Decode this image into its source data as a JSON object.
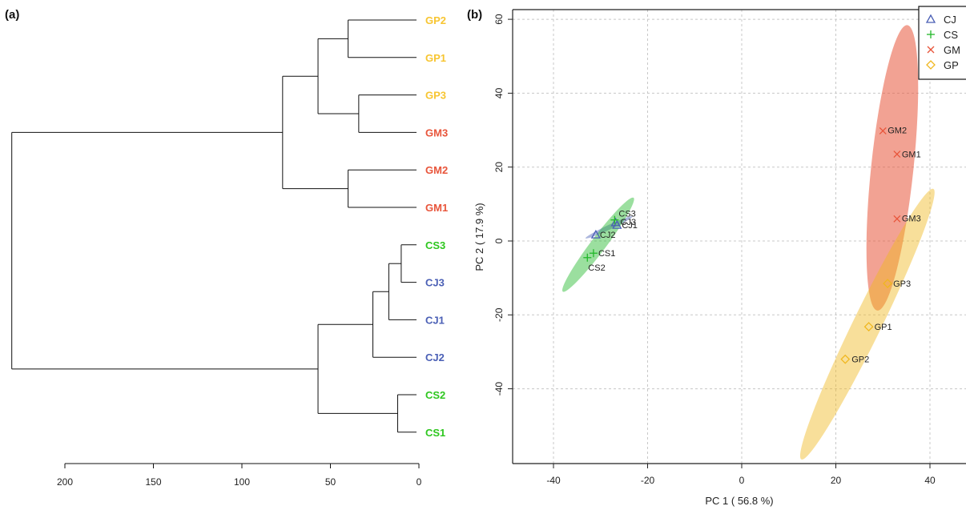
{
  "colors": {
    "CJ": "#4a5fb5",
    "CS": "#22b82a",
    "GM": "#e8553b",
    "GP": "#f0b71f",
    "label_GP": "#f7c531",
    "label_GM": "#e8553b",
    "label_CS": "#2ec71f",
    "label_CJ": "#4a5fb5",
    "axis": "#222222",
    "grid": "#c8c8c8"
  },
  "panel_a": {
    "label": "(a)",
    "chart_data": {
      "type": "dendrogram",
      "leaves": [
        {
          "name": "GP2",
          "group": "GP"
        },
        {
          "name": "GP1",
          "group": "GP"
        },
        {
          "name": "GP3",
          "group": "GP"
        },
        {
          "name": "GM3",
          "group": "GM"
        },
        {
          "name": "GM2",
          "group": "GM"
        },
        {
          "name": "GM1",
          "group": "GM"
        },
        {
          "name": "CS3",
          "group": "CS"
        },
        {
          "name": "CJ3",
          "group": "CJ"
        },
        {
          "name": "CJ1",
          "group": "CJ"
        },
        {
          "name": "CJ2",
          "group": "CJ"
        },
        {
          "name": "CS2",
          "group": "CS"
        },
        {
          "name": "CS1",
          "group": "CS"
        }
      ],
      "merges": [
        {
          "id": "m1",
          "children": [
            "GP2",
            "GP1"
          ],
          "height": 40
        },
        {
          "id": "m2",
          "children": [
            "GP3",
            "GM3"
          ],
          "height": 34
        },
        {
          "id": "m3",
          "children": [
            "m1",
            "m2"
          ],
          "height": 57
        },
        {
          "id": "m4",
          "children": [
            "GM2",
            "GM1"
          ],
          "height": 40
        },
        {
          "id": "m5",
          "children": [
            "m3",
            "m4"
          ],
          "height": 77
        },
        {
          "id": "m6",
          "children": [
            "CS3",
            "CJ3"
          ],
          "height": 10
        },
        {
          "id": "m7",
          "children": [
            "m6",
            "CJ1"
          ],
          "height": 17
        },
        {
          "id": "m8",
          "children": [
            "m7",
            "CJ2"
          ],
          "height": 26
        },
        {
          "id": "m9",
          "children": [
            "CS2",
            "CS1"
          ],
          "height": 12
        },
        {
          "id": "m10",
          "children": [
            "m8",
            "m9"
          ],
          "height": 57
        },
        {
          "id": "m11",
          "children": [
            "m5",
            "m10"
          ],
          "height": 230
        }
      ],
      "xlim": [
        200,
        0
      ],
      "x_ticks": [
        200,
        150,
        100,
        50,
        0
      ],
      "x_tick_labels": [
        "200",
        "150",
        "100",
        "50",
        "0"
      ]
    }
  },
  "panel_b": {
    "label": "(b)",
    "chart_data": {
      "type": "scatter",
      "xlabel": "PC 1 ( 56.8 %)",
      "ylabel": "PC 2 ( 17.9 %)",
      "xlim": [
        -48,
        42
      ],
      "ylim": [
        -60,
        62
      ],
      "x_ticks": [
        -40,
        -20,
        0,
        20,
        40
      ],
      "x_tick_labels": [
        "-40",
        "-20",
        "0",
        "20",
        "40"
      ],
      "y_ticks": [
        -40,
        -20,
        0,
        20,
        40,
        60
      ],
      "y_tick_labels": [
        "-40",
        "-20",
        "0",
        "20",
        "40",
        "60"
      ],
      "grid": true,
      "legend_position": "top-right",
      "legend": [
        {
          "name": "CJ",
          "marker": "triangle"
        },
        {
          "name": "CS",
          "marker": "plus"
        },
        {
          "name": "GM",
          "marker": "cross"
        },
        {
          "name": "GP",
          "marker": "diamond"
        }
      ],
      "series": [
        {
          "name": "CJ",
          "points": [
            {
              "label": "CJ1",
              "x": -26.5,
              "y": 4.3
            },
            {
              "label": "CJ2",
              "x": -31.0,
              "y": 1.7
            },
            {
              "label": "CJ3",
              "x": -26.8,
              "y": 5.0
            }
          ]
        },
        {
          "name": "CS",
          "points": [
            {
              "label": "CS1",
              "x": -31.5,
              "y": -3.3
            },
            {
              "label": "CS2",
              "x": -32.8,
              "y": -4.5
            },
            {
              "label": "CS3",
              "x": -27.0,
              "y": 5.7
            }
          ]
        },
        {
          "name": "GM",
          "points": [
            {
              "label": "GM1",
              "x": 33.0,
              "y": 23.5
            },
            {
              "label": "GM2",
              "x": 30.0,
              "y": 29.8
            },
            {
              "label": "GM3",
              "x": 33.0,
              "y": 6.0
            }
          ]
        },
        {
          "name": "GP",
          "points": [
            {
              "label": "GP1",
              "x": 27.0,
              "y": -23.2
            },
            {
              "label": "GP2",
              "x": 22.0,
              "y": -32.0
            },
            {
              "label": "GP3",
              "x": 31.0,
              "y": -11.5
            }
          ]
        }
      ],
      "ellipses": [
        {
          "group": "CJ",
          "cx": -28.2,
          "cy": 3.7,
          "rx": 5.5,
          "ry": 0.5,
          "angle_deg": 25
        },
        {
          "group": "CS",
          "cx": -30.5,
          "cy": -1.0,
          "rx": 12.5,
          "ry": 1.6,
          "angle_deg": 53
        },
        {
          "group": "GM",
          "cx": 32.0,
          "cy": 19.8,
          "rx": 30.5,
          "ry": 4.5,
          "angle_deg": 84
        },
        {
          "group": "GP",
          "cx": 26.7,
          "cy": -22.5,
          "rx": 32.0,
          "ry": 3.0,
          "angle_deg": 64
        }
      ]
    }
  }
}
